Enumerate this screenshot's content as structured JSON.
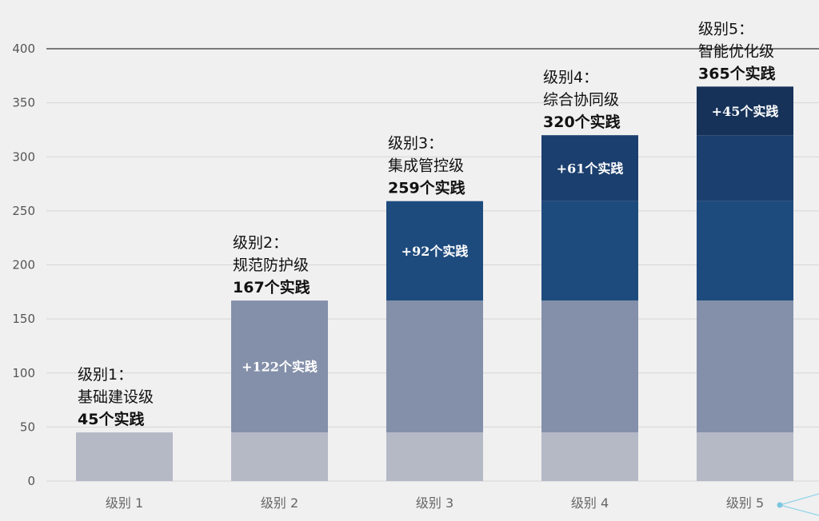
{
  "chart_data": {
    "type": "bar",
    "stacked": true,
    "title": "",
    "xlabel": "",
    "ylabel": "",
    "ylim": [
      0,
      400
    ],
    "yticks": [
      0,
      50,
      100,
      150,
      200,
      250,
      300,
      350,
      400
    ],
    "grid": true,
    "categories": [
      "级别 1",
      "级别 2",
      "级别 3",
      "级别 4",
      "级别 5"
    ],
    "totals": [
      45,
      167,
      259,
      320,
      365
    ],
    "series": [
      {
        "color": "#b5b9c6",
        "values": [
          45,
          45,
          45,
          45,
          45
        ]
      },
      {
        "color": "#8490aa",
        "values": [
          0,
          122,
          122,
          122,
          122
        ]
      },
      {
        "color": "#1e4b7e",
        "values": [
          0,
          0,
          92,
          92,
          92
        ]
      },
      {
        "color": "#1b3f6e",
        "values": [
          0,
          0,
          0,
          61,
          61
        ]
      },
      {
        "color": "#163259",
        "values": [
          0,
          0,
          0,
          0,
          45
        ]
      }
    ],
    "increment_labels": [
      {
        "category_index": 1,
        "series_index": 1,
        "text": "+122个实践"
      },
      {
        "category_index": 2,
        "series_index": 2,
        "text": "+92个实践"
      },
      {
        "category_index": 3,
        "series_index": 3,
        "text": "+61个实践"
      },
      {
        "category_index": 4,
        "series_index": 4,
        "text": "+45个实践"
      }
    ],
    "annotations": [
      {
        "category_index": 0,
        "level": "级别1：",
        "name": "基础建设级",
        "count": "45个实践"
      },
      {
        "category_index": 1,
        "level": "级别2：",
        "name": "规范防护级",
        "count": "167个实践"
      },
      {
        "category_index": 2,
        "level": "级别3：",
        "name": "集成管控级",
        "count": "259个实践"
      },
      {
        "category_index": 3,
        "level": "级别4：",
        "name": "综合协同级",
        "count": "320个实践"
      },
      {
        "category_index": 4,
        "level": "级别5：",
        "name": "智能优化级",
        "count": "365个实践"
      }
    ]
  }
}
